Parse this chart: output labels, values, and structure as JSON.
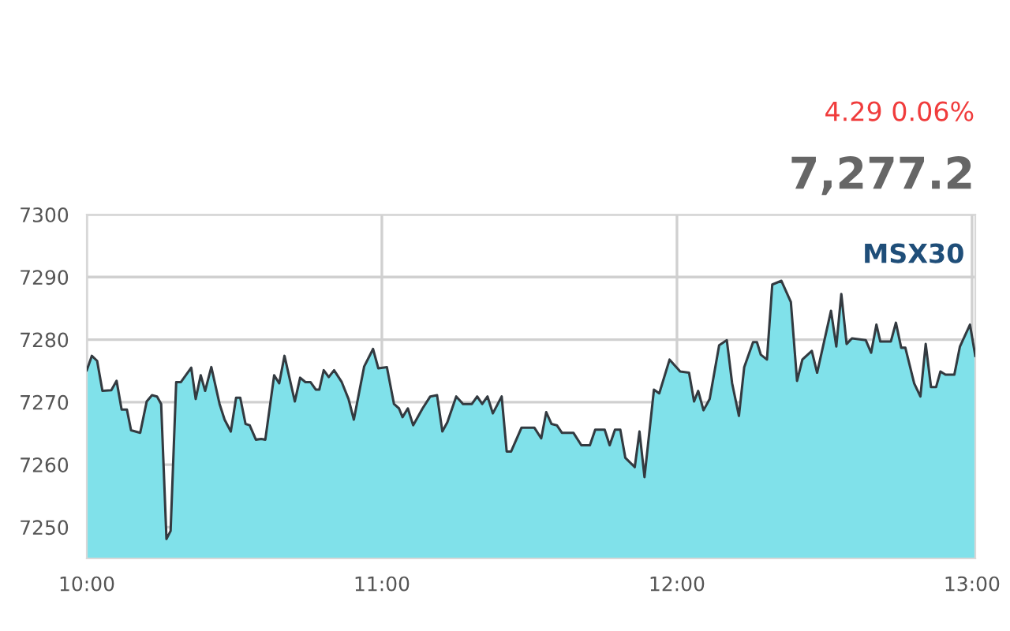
{
  "chart_data": {
    "type": "area",
    "annotations": [
      "4.29 0.06%",
      "7,277.2",
      "MSX30"
    ],
    "x": [
      10.0,
      10.017,
      10.035,
      10.053,
      10.083,
      10.101,
      10.118,
      10.136,
      10.15,
      10.181,
      10.203,
      10.221,
      10.238,
      10.252,
      10.27,
      10.284,
      10.303,
      10.319,
      10.354,
      10.369,
      10.386,
      10.401,
      10.422,
      10.45,
      10.467,
      10.488,
      10.506,
      10.52,
      10.538,
      10.552,
      10.573,
      10.591,
      10.605,
      10.635,
      10.652,
      10.67,
      10.705,
      10.723,
      10.741,
      10.758,
      10.776,
      10.788,
      10.803,
      10.82,
      10.838,
      10.864,
      10.887,
      10.905,
      10.94,
      10.97,
      10.988,
      11.017,
      11.041,
      11.058,
      11.07,
      11.088,
      11.106,
      11.138,
      11.164,
      11.187,
      11.205,
      11.222,
      11.252,
      11.275,
      11.305,
      11.323,
      11.34,
      11.358,
      11.376,
      11.406,
      11.423,
      11.438,
      11.473,
      11.517,
      11.54,
      11.557,
      11.575,
      11.593,
      11.61,
      11.649,
      11.676,
      11.705,
      11.723,
      11.755,
      11.772,
      11.79,
      11.808,
      11.825,
      11.857,
      11.873,
      11.89,
      11.922,
      11.94,
      11.975,
      12.011,
      12.041,
      12.058,
      12.072,
      12.09,
      12.111,
      12.143,
      12.169,
      12.187,
      12.21,
      12.228,
      12.258,
      12.271,
      12.284,
      12.305,
      12.323,
      12.354,
      12.386,
      12.407,
      12.425,
      12.457,
      12.475,
      12.522,
      12.54,
      12.557,
      12.575,
      12.593,
      12.64,
      12.658,
      12.676,
      12.689,
      12.725,
      12.742,
      12.76,
      12.774,
      12.804,
      12.825,
      12.843,
      12.861,
      12.878,
      12.893,
      12.91,
      12.94,
      12.959,
      12.993,
      13.011
    ],
    "series": [
      {
        "color": "#80e1ea",
        "values": [
          7275.1,
          7277.4,
          7276.6,
          7271.8,
          7271.9,
          7273.4,
          7268.8,
          7268.8,
          7265.5,
          7265.1,
          7270.1,
          7271.1,
          7270.9,
          7269.7,
          7248.1,
          7249.4,
          7273.2,
          7273.2,
          7275.5,
          7270.5,
          7274.3,
          7271.8,
          7275.6,
          7269.7,
          7267.2,
          7265.3,
          7270.7,
          7270.7,
          7266.5,
          7266.3,
          7264.0,
          7264.1,
          7264.0,
          7274.3,
          7273.0,
          7277.4,
          7270.1,
          7273.9,
          7273.2,
          7273.2,
          7272.0,
          7272.0,
          7275.1,
          7274.0,
          7275.1,
          7273.2,
          7270.5,
          7267.2,
          7275.7,
          7278.5,
          7275.4,
          7275.6,
          7269.7,
          7269.0,
          7267.6,
          7269.0,
          7266.3,
          7269.0,
          7270.9,
          7271.1,
          7265.3,
          7266.8,
          7270.9,
          7269.7,
          7269.7,
          7270.9,
          7269.7,
          7270.9,
          7268.2,
          7270.9,
          7262.1,
          7262.1,
          7265.9,
          7265.9,
          7264.2,
          7268.4,
          7266.5,
          7266.3,
          7265.1,
          7265.1,
          7263.1,
          7263.1,
          7265.6,
          7265.6,
          7263.1,
          7265.6,
          7265.6,
          7261.1,
          7259.6,
          7265.3,
          7258.0,
          7272.0,
          7271.4,
          7276.8,
          7274.9,
          7274.7,
          7270.1,
          7271.8,
          7268.7,
          7270.5,
          7279.1,
          7279.9,
          7273.0,
          7267.8,
          7275.6,
          7279.6,
          7279.6,
          7277.6,
          7276.8,
          7288.8,
          7289.4,
          7286.0,
          7273.4,
          7276.8,
          7278.2,
          7274.7,
          7284.6,
          7278.9,
          7287.3,
          7279.3,
          7280.2,
          7279.9,
          7277.9,
          7282.4,
          7279.7,
          7279.7,
          7282.7,
          7278.7,
          7278.7,
          7273.0,
          7270.9,
          7279.3,
          7272.4,
          7272.4,
          7274.9,
          7274.4,
          7274.4,
          7278.9,
          7282.4,
          7277.4
        ]
      }
    ],
    "xlim": [
      10,
      13.011
    ],
    "xticks": [
      {
        "value": 10,
        "label": "10:00"
      },
      {
        "value": 11,
        "label": "11:00"
      },
      {
        "value": 12,
        "label": "12:00"
      },
      {
        "value": 13,
        "label": "13:00"
      }
    ],
    "ylim": [
      7245,
      7300
    ],
    "yticks": [
      7250,
      7260,
      7270,
      7280,
      7290,
      7300
    ],
    "grid": true,
    "marker": "none",
    "line_style": "solid"
  }
}
